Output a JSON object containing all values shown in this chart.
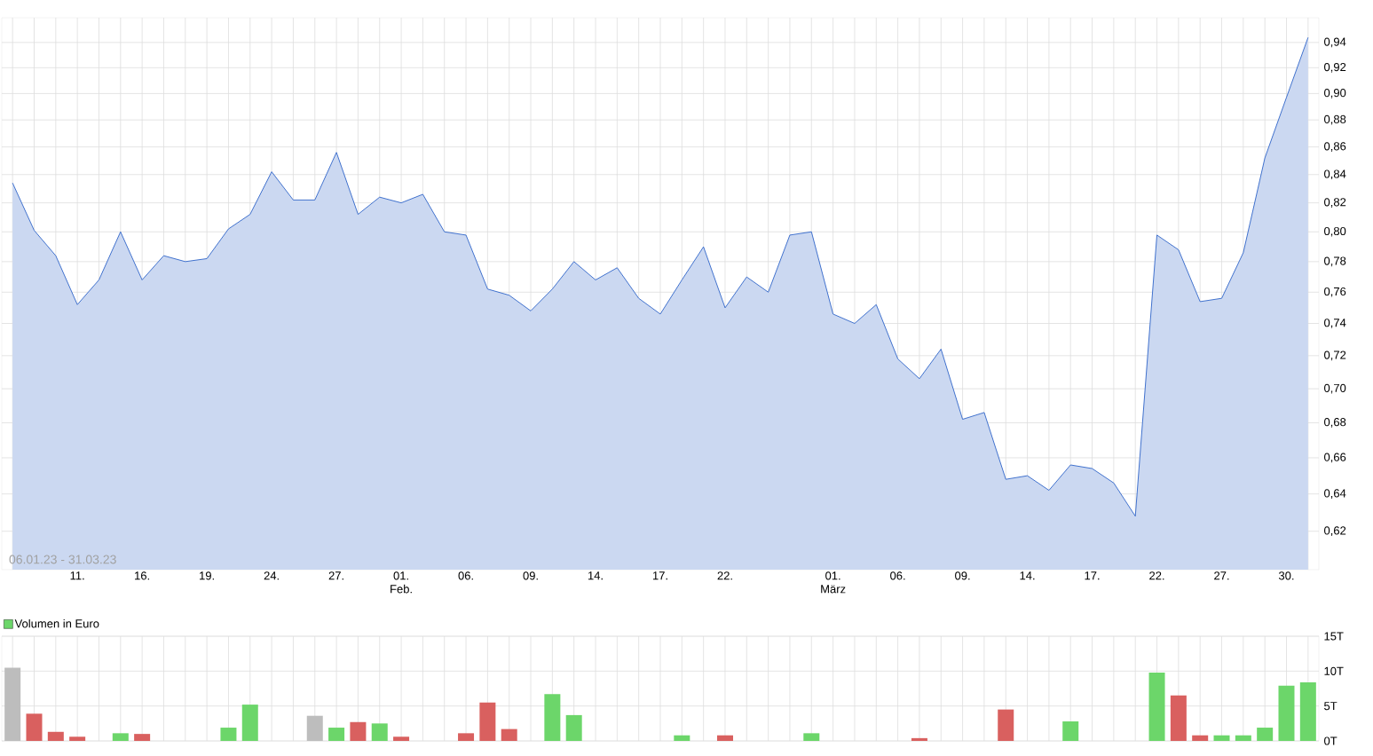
{
  "chart_data": [
    {
      "type": "area",
      "log": "y",
      "grid": true,
      "legend": false,
      "categories": [
        null,
        null,
        null,
        "11.",
        null,
        null,
        "16.",
        null,
        null,
        "19.",
        null,
        null,
        "24.",
        null,
        null,
        "27.",
        null,
        null,
        "01. Feb.",
        null,
        null,
        "06.",
        null,
        null,
        "09.",
        null,
        null,
        "14.",
        null,
        null,
        "17.",
        null,
        null,
        "22.",
        null,
        null,
        null,
        null,
        "01. März",
        null,
        null,
        "06.",
        null,
        null,
        "09.",
        null,
        null,
        "14.",
        null,
        null,
        "17.",
        null,
        null,
        "22.",
        null,
        null,
        "27.",
        null,
        null,
        "30.",
        null
      ],
      "series": [
        {
          "color": "#2f64c8",
          "values": [
            0.834,
            0.801,
            0.784,
            0.752,
            0.768,
            0.8,
            0.768,
            0.784,
            0.78,
            0.782,
            0.802,
            0.812,
            0.842,
            0.822,
            0.822,
            0.856,
            0.812,
            0.824,
            0.82,
            0.826,
            0.8,
            0.798,
            0.762,
            0.758,
            0.748,
            0.762,
            0.78,
            0.768,
            0.776,
            0.756,
            0.746,
            0.768,
            0.79,
            0.75,
            0.77,
            0.76,
            0.798,
            0.8,
            0.746,
            0.74,
            0.752,
            0.718,
            0.706,
            0.724,
            0.682,
            0.686,
            0.648,
            0.65,
            0.642,
            0.656,
            0.654,
            0.646,
            0.628,
            0.798,
            0.788,
            0.754,
            0.756,
            0.786,
            0.852,
            0.897,
            0.944
          ]
        }
      ],
      "ylim": [
        0.6,
        0.96
      ],
      "yticks": [
        {
          "value": 0.62,
          "label": "0,62"
        },
        {
          "value": 0.64,
          "label": "0,64"
        },
        {
          "value": 0.66,
          "label": "0,66"
        },
        {
          "value": 0.68,
          "label": "0,68"
        },
        {
          "value": 0.7,
          "label": "0,70"
        },
        {
          "value": 0.72,
          "label": "0,72"
        },
        {
          "value": 0.74,
          "label": "0,74"
        },
        {
          "value": 0.76,
          "label": "0,76"
        },
        {
          "value": 0.78,
          "label": "0,78"
        },
        {
          "value": 0.8,
          "label": "0,80"
        },
        {
          "value": 0.82,
          "label": "0,82"
        },
        {
          "value": 0.84,
          "label": "0,84"
        },
        {
          "value": 0.86,
          "label": "0,86"
        },
        {
          "value": 0.88,
          "label": "0,88"
        },
        {
          "value": 0.9,
          "label": "0,90"
        },
        {
          "value": 0.92,
          "label": "0,92"
        },
        {
          "value": 0.94,
          "label": "0,94"
        }
      ],
      "annotations": [
        "06.01.23 - 31.03.23"
      ]
    },
    {
      "type": "bar",
      "grid": true,
      "legend": "top left",
      "tick_labels": "y",
      "categories": [
        null,
        null,
        null,
        null,
        null,
        null,
        null,
        null,
        null,
        null,
        null,
        null,
        null,
        null,
        null,
        null,
        null,
        null,
        null,
        null,
        null,
        null,
        null,
        null,
        null,
        null,
        null,
        null,
        null,
        null,
        null,
        null,
        null,
        null,
        null,
        null,
        null,
        null,
        null,
        null,
        null,
        null,
        null,
        null,
        null,
        null,
        null,
        null,
        null,
        null,
        null,
        null,
        null,
        null,
        null,
        null,
        null,
        null,
        null,
        null,
        null
      ],
      "series": [
        {
          "name": "Volumen in Euro",
          "color": "#6cd66a",
          "values": [
            10.5,
            3.9,
            1.3,
            0.6,
            null,
            1.1,
            1.0,
            null,
            null,
            null,
            1.9,
            5.2,
            null,
            null,
            3.6,
            1.9,
            2.7,
            2.5,
            0.6,
            null,
            null,
            1.1,
            5.5,
            1.7,
            null,
            6.7,
            3.7,
            null,
            null,
            null,
            null,
            0.8,
            null,
            0.8,
            null,
            null,
            null,
            1.1,
            null,
            null,
            null,
            null,
            0.4,
            null,
            null,
            null,
            4.5,
            null,
            null,
            2.8,
            null,
            null,
            null,
            9.8,
            6.5,
            0.8,
            0.8,
            0.8,
            1.9,
            7.9,
            8.4
          ],
          "colors": [
            "#bdbdbd",
            "#d9605f",
            "#d9605f",
            "#d9605f",
            null,
            "#6cd66a",
            "#d9605f",
            null,
            null,
            null,
            "#6cd66a",
            "#6cd66a",
            null,
            null,
            "#bdbdbd",
            "#6cd66a",
            "#d9605f",
            "#6cd66a",
            "#d9605f",
            null,
            null,
            "#d9605f",
            "#d9605f",
            "#d9605f",
            null,
            "#6cd66a",
            "#6cd66a",
            null,
            null,
            null,
            null,
            "#6cd66a",
            null,
            "#d9605f",
            null,
            null,
            null,
            "#6cd66a",
            null,
            null,
            null,
            null,
            "#d9605f",
            null,
            null,
            null,
            "#d9605f",
            null,
            null,
            "#6cd66a",
            null,
            null,
            null,
            "#6cd66a",
            "#d9605f",
            "#d9605f",
            "#6cd66a",
            "#6cd66a",
            "#6cd66a",
            "#6cd66a",
            "#6cd66a"
          ]
        }
      ],
      "ylim": [
        0,
        15
      ],
      "yticks": [
        {
          "value": 0,
          "label": "0T"
        },
        {
          "value": 5,
          "label": "5T"
        },
        {
          "value": 10,
          "label": "10T"
        },
        {
          "value": 15,
          "label": "15T"
        }
      ]
    }
  ]
}
